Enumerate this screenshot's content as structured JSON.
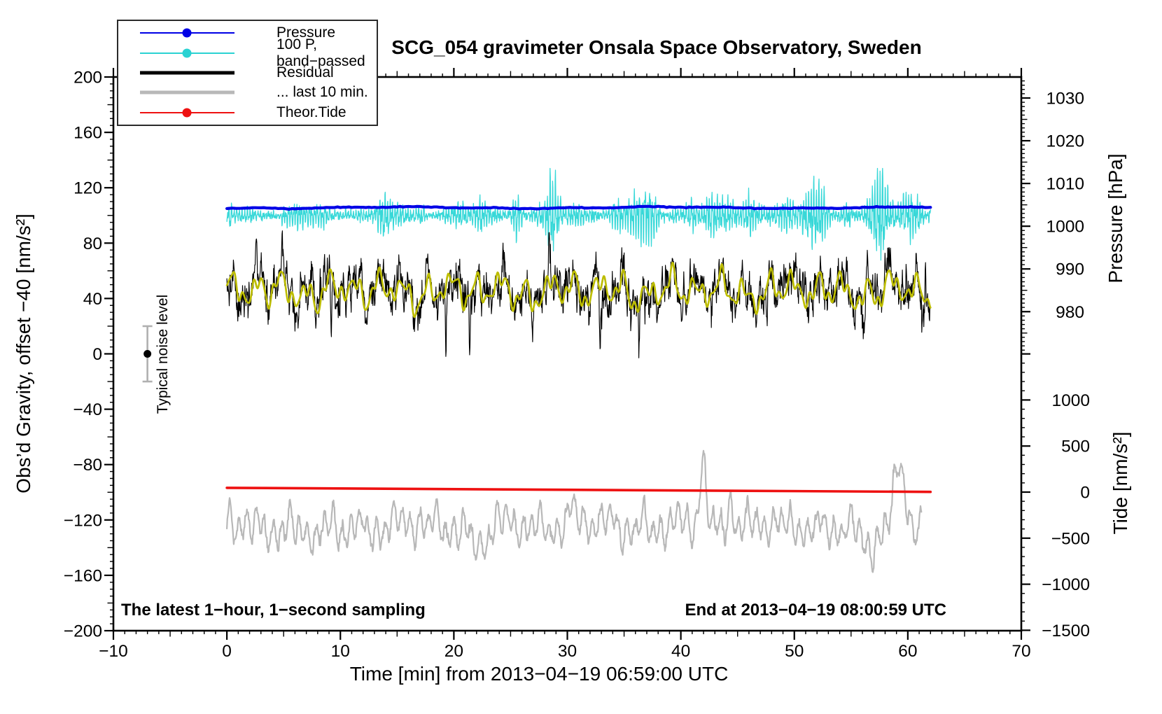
{
  "page": {
    "background": "#ffffff"
  },
  "chart_data": {
    "type": "line",
    "title": "SCG_054 gravimeter Onsala Space Observatory, Sweden",
    "xlabel": "Time [min] from 2013−04−19 06:59:00 UTC",
    "seed": 20130419,
    "annotations": {
      "bottom_left": "The latest 1−hour, 1−second sampling",
      "bottom_right": "End at 2013−04−19 08:00:59 UTC",
      "noise_marker": {
        "label": "Typical noise level",
        "time_min": -7,
        "center_value": 0,
        "half_range": 20,
        "bar_color": "#b0b0b0",
        "dot_color": "#000000"
      }
    },
    "axes": {
      "x": {
        "range": [
          -10,
          70
        ],
        "minor_step": 1,
        "medium_step": 5,
        "major_step": 10,
        "tick_labels": [
          {
            "v": -10,
            "label": "−10"
          },
          {
            "v": 0,
            "label": "0"
          },
          {
            "v": 10,
            "label": "10"
          },
          {
            "v": 20,
            "label": "20"
          },
          {
            "v": 30,
            "label": "30"
          },
          {
            "v": 40,
            "label": "40"
          },
          {
            "v": 50,
            "label": "50"
          },
          {
            "v": 60,
            "label": "60"
          },
          {
            "v": 70,
            "label": "70"
          }
        ]
      },
      "left": {
        "title": "Obs’d Gravity, offset −40 [nm/s²]",
        "range": [
          -200,
          200
        ],
        "minor_step": 5,
        "medium_step": 20,
        "major_step": 40,
        "tick_labels": [
          {
            "v": 200,
            "label": "200"
          },
          {
            "v": 160,
            "label": "160"
          },
          {
            "v": 120,
            "label": "120"
          },
          {
            "v": 80,
            "label": "80"
          },
          {
            "v": 40,
            "label": "40"
          },
          {
            "v": 0,
            "label": "0"
          },
          {
            "v": -40,
            "label": "−40"
          },
          {
            "v": -80,
            "label": "−80"
          },
          {
            "v": -120,
            "label": "−120"
          },
          {
            "v": -160,
            "label": "−160"
          },
          {
            "v": -200,
            "label": "−200"
          }
        ]
      },
      "right_pressure": {
        "title": "Pressure [hPa]",
        "units": "hPa",
        "minor_step": 1,
        "medium_step": 5,
        "major_step": 10,
        "tick_labels": [
          {
            "v": 1030,
            "label": "1030"
          },
          {
            "v": 1020,
            "label": "1020"
          },
          {
            "v": 1010,
            "label": "1010"
          },
          {
            "v": 1000,
            "label": "1000"
          },
          {
            "v": 990,
            "label": "990"
          },
          {
            "v": 980,
            "label": "980"
          }
        ]
      },
      "right_tide": {
        "title": "Tide [nm/s²]",
        "units": "nm/s²",
        "minor_step": 100,
        "major_step": 500,
        "tick_labels": [
          {
            "v": 1000,
            "label": "1000"
          },
          {
            "v": 500,
            "label": "500"
          },
          {
            "v": 0,
            "label": "0"
          },
          {
            "v": -500,
            "label": "−500"
          },
          {
            "v": -1000,
            "label": "−1000"
          },
          {
            "v": -1500,
            "label": "−1500"
          }
        ]
      }
    },
    "series": [
      {
        "name": "... last 10 min.",
        "color": "#b8b8b8",
        "width": 2.2,
        "axis": "gravity",
        "t_range": [
          0,
          61.2
        ],
        "dt": 0.04,
        "model": {
          "kind": "harmonics_noise",
          "mean": -124.5,
          "sigma": 2.6,
          "ar": 0.6,
          "harmonics": [
            [
              9.2,
              0.76
            ],
            [
              5.4,
              3.1
            ],
            [
              3.2,
              1.3
            ],
            [
              2.2,
              7.9
            ]
          ],
          "events": [
            [
              41.9,
              46,
              0.3
            ],
            [
              59.3,
              50,
              0.45
            ],
            [
              44.3,
              16,
              0.35
            ],
            [
              56.6,
              -15,
              0.9
            ],
            [
              22.2,
              -13,
              0.8
            ],
            [
              30.5,
              10,
              0.5
            ],
            [
              8.1,
              -10,
              0.6
            ]
          ],
          "clamp_max": -70
        }
      },
      {
        "name": "Theor.Tide",
        "color": "#ee1111",
        "width": 3.6,
        "axis": "tide",
        "model": {
          "kind": "linear",
          "points": [
            [
              0,
              46
            ],
            [
              30,
              25
            ],
            [
              62,
              2
            ]
          ]
        }
      },
      {
        "name": "100 P, band−passed",
        "color": "#38d8d8",
        "width": 1.3,
        "axis": "gravity",
        "t_range": [
          0,
          62
        ],
        "dt": 0.025,
        "model": {
          "kind": "bandpassed",
          "center": 100,
          "amp_start": 4.8,
          "amp_end": 10.5,
          "carriers": [
            [
              0.78,
              0.23
            ],
            [
              0.55,
              0.115
            ],
            [
              0.3,
              0.45
            ]
          ],
          "mod_base": 0.72,
          "mod_harmonics": [
            [
              0.42,
              7.3
            ],
            [
              0.26,
              2.9
            ],
            [
              0.18,
              1.7
            ]
          ],
          "bursts": [
            [
              25.4,
              1.9,
              0.3
            ],
            [
              28.6,
              1.5,
              0.35
            ],
            [
              36.5,
              0.9,
              0.8
            ],
            [
              41.4,
              1.1,
              0.5
            ],
            [
              47.0,
              1.2,
              0.7
            ],
            [
              52.3,
              1.0,
              0.6
            ],
            [
              57.3,
              1.3,
              0.5
            ],
            [
              60.5,
              1.0,
              0.4
            ],
            [
              6.2,
              0.8,
              0.3
            ],
            [
              13.5,
              0.5,
              0.5
            ]
          ],
          "jitter": 1.1,
          "cap": 30,
          "max_dev": 34,
          "phase_jitter": 0.5
        }
      },
      {
        "name": "Pressure",
        "color": "#0000e6",
        "width": 4.2,
        "axis": "pressure",
        "t_range": [
          0,
          62
        ],
        "dt": 0.25,
        "model": {
          "kind": "pressure",
          "mean": 1004.35,
          "jitter": 0.05,
          "harmonics": [
            [
              0.18,
              23
            ],
            [
              0.09,
              6.8
            ]
          ]
        }
      },
      {
        "name": "Residual",
        "color": "#000000",
        "width": 1.15,
        "axis": "gravity",
        "t_range": [
          0,
          62
        ],
        "dt": 0.03,
        "model": {
          "kind": "harmonics_noise",
          "base_key": "residual_base",
          "mean": 45.5,
          "sigma": 8.0,
          "ar": 0.7,
          "extra_sigma": 3.0,
          "harmonics": [
            [
              8.2,
              2.15
            ],
            [
              4.6,
              0.86
            ],
            [
              3.4,
              4.9
            ],
            [
              2.4,
              1.45
            ],
            [
              1.7,
              0.55
            ],
            [
              2.0,
              9.7
            ]
          ],
          "events": [
            [
              2.6,
              34,
              0.05
            ],
            [
              9.2,
              -50,
              0.06
            ],
            [
              19.3,
              -54,
              0.05
            ],
            [
              21.4,
              -32,
              0.045
            ],
            [
              28.4,
              28,
              0.06
            ],
            [
              32.9,
              -40,
              0.05
            ],
            [
              36.3,
              -30,
              0.04
            ],
            [
              47.6,
              -26,
              0.04
            ],
            [
              52.2,
              -28,
              0.04
            ]
          ],
          "clamp_max": 93
        }
      },
      {
        "name": "Residual smoothed",
        "color": "#bdbd00",
        "width": 2.7,
        "axis": "gravity",
        "t_range": [
          0,
          62
        ],
        "dt": 0.05,
        "model": {
          "kind": "harmonics",
          "base_key": "residual_base",
          "mean": 45.5,
          "harmonics": [
            [
              8.2,
              2.15
            ],
            [
              4.6,
              0.86
            ],
            [
              3.4,
              4.9
            ],
            [
              2.4,
              1.45
            ],
            [
              1.7,
              0.55
            ],
            [
              2.0,
              9.7
            ]
          ]
        }
      }
    ],
    "legend": {
      "items": [
        {
          "label": "Pressure",
          "color": "#0000e6",
          "line_width": 2,
          "dot": true
        },
        {
          "label": "100 P, band−passed",
          "color": "#2ad2d2",
          "line_width": 2,
          "dot": true
        },
        {
          "label": "Residual",
          "color": "#000000",
          "line_width": 5,
          "dot": false
        },
        {
          "label": "... last 10 min.",
          "color": "#b8b8b8",
          "line_width": 5,
          "dot": false
        },
        {
          "label": "Theor.Tide",
          "color": "#ee1111",
          "line_width": 2,
          "dot": true
        }
      ]
    }
  }
}
